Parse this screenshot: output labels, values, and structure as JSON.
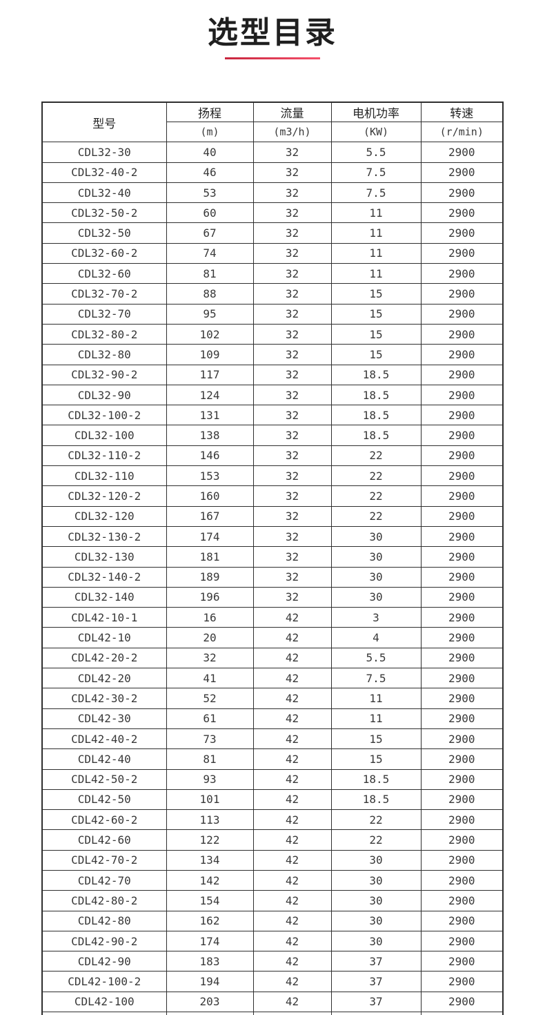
{
  "page": {
    "title": "选型目录",
    "accent_gradient_start": "#c8263e",
    "accent_gradient_end": "#f5506a",
    "text_color": "#1f1f1f",
    "grid_color": "#2e2e2e"
  },
  "table": {
    "headers": {
      "model": "型号",
      "columns": [
        {
          "name": "扬程",
          "unit": "(m)"
        },
        {
          "name": "流量",
          "unit": "(m3/h)"
        },
        {
          "name": "电机功率",
          "unit": "(KW)"
        },
        {
          "name": "转速",
          "unit": "(r/min)"
        }
      ]
    },
    "rows": [
      [
        "CDL32-30",
        "40",
        "32",
        "5.5",
        "2900"
      ],
      [
        "CDL32-40-2",
        "46",
        "32",
        "7.5",
        "2900"
      ],
      [
        "CDL32-40",
        "53",
        "32",
        "7.5",
        "2900"
      ],
      [
        "CDL32-50-2",
        "60",
        "32",
        "11",
        "2900"
      ],
      [
        "CDL32-50",
        "67",
        "32",
        "11",
        "2900"
      ],
      [
        "CDL32-60-2",
        "74",
        "32",
        "11",
        "2900"
      ],
      [
        "CDL32-60",
        "81",
        "32",
        "11",
        "2900"
      ],
      [
        "CDL32-70-2",
        "88",
        "32",
        "15",
        "2900"
      ],
      [
        "CDL32-70",
        "95",
        "32",
        "15",
        "2900"
      ],
      [
        "CDL32-80-2",
        "102",
        "32",
        "15",
        "2900"
      ],
      [
        "CDL32-80",
        "109",
        "32",
        "15",
        "2900"
      ],
      [
        "CDL32-90-2",
        "117",
        "32",
        "18.5",
        "2900"
      ],
      [
        "CDL32-90",
        "124",
        "32",
        "18.5",
        "2900"
      ],
      [
        "CDL32-100-2",
        "131",
        "32",
        "18.5",
        "2900"
      ],
      [
        "CDL32-100",
        "138",
        "32",
        "18.5",
        "2900"
      ],
      [
        "CDL32-110-2",
        "146",
        "32",
        "22",
        "2900"
      ],
      [
        "CDL32-110",
        "153",
        "32",
        "22",
        "2900"
      ],
      [
        "CDL32-120-2",
        "160",
        "32",
        "22",
        "2900"
      ],
      [
        "CDL32-120",
        "167",
        "32",
        "22",
        "2900"
      ],
      [
        "CDL32-130-2",
        "174",
        "32",
        "30",
        "2900"
      ],
      [
        "CDL32-130",
        "181",
        "32",
        "30",
        "2900"
      ],
      [
        "CDL32-140-2",
        "189",
        "32",
        "30",
        "2900"
      ],
      [
        "CDL32-140",
        "196",
        "32",
        "30",
        "2900"
      ],
      [
        "CDL42-10-1",
        "16",
        "42",
        "3",
        "2900"
      ],
      [
        "CDL42-10",
        "20",
        "42",
        "4",
        "2900"
      ],
      [
        "CDL42-20-2",
        "32",
        "42",
        "5.5",
        "2900"
      ],
      [
        "CDL42-20",
        "41",
        "42",
        "7.5",
        "2900"
      ],
      [
        "CDL42-30-2",
        "52",
        "42",
        "11",
        "2900"
      ],
      [
        "CDL42-30",
        "61",
        "42",
        "11",
        "2900"
      ],
      [
        "CDL42-40-2",
        "73",
        "42",
        "15",
        "2900"
      ],
      [
        "CDL42-40",
        "81",
        "42",
        "15",
        "2900"
      ],
      [
        "CDL42-50-2",
        "93",
        "42",
        "18.5",
        "2900"
      ],
      [
        "CDL42-50",
        "101",
        "42",
        "18.5",
        "2900"
      ],
      [
        "CDL42-60-2",
        "113",
        "42",
        "22",
        "2900"
      ],
      [
        "CDL42-60",
        "122",
        "42",
        "22",
        "2900"
      ],
      [
        "CDL42-70-2",
        "134",
        "42",
        "30",
        "2900"
      ],
      [
        "CDL42-70",
        "142",
        "42",
        "30",
        "2900"
      ],
      [
        "CDL42-80-2",
        "154",
        "42",
        "30",
        "2900"
      ],
      [
        "CDL42-80",
        "162",
        "42",
        "30",
        "2900"
      ],
      [
        "CDL42-90-2",
        "174",
        "42",
        "30",
        "2900"
      ],
      [
        "CDL42-90",
        "183",
        "42",
        "37",
        "2900"
      ],
      [
        "CDL42-100-2",
        "194",
        "42",
        "37",
        "2900"
      ],
      [
        "CDL42-100",
        "203",
        "42",
        "37",
        "2900"
      ]
    ],
    "partial_row_visible": true
  }
}
